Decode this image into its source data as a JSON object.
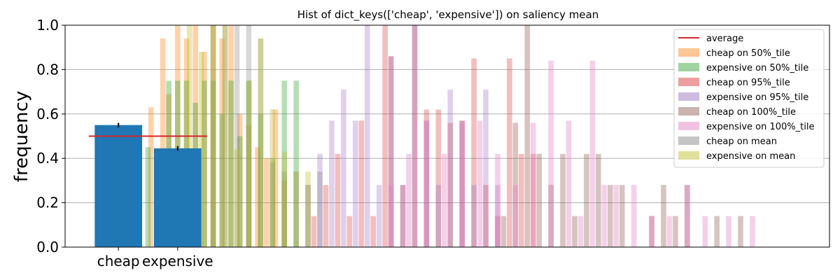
{
  "chart_data": {
    "type": "bar",
    "title": "Hist of dict_keys(['cheap', 'expensive']) on saliency mean",
    "xlabel": "",
    "ylabel": "frequency",
    "ylim": [
      0,
      1.0
    ],
    "y_ticks": [
      "0.0",
      "0.2",
      "0.4",
      "0.6",
      "0.8",
      "1.0"
    ],
    "grid": "horizontal",
    "legend_position": "top-right",
    "categories": [
      "cheap",
      "expensive"
    ],
    "main_bars": {
      "color": "#1f77b4",
      "values": [
        0.55,
        0.445
      ],
      "error": [
        0.01,
        0.01
      ]
    },
    "average": {
      "name": "average",
      "value": 0.5,
      "color": "#d62728"
    },
    "histograms": [
      {
        "name": "cheap on 50%_tile",
        "color": "#ff7f0e",
        "opacity": 0.35,
        "x": [
          0.35,
          0.55,
          0.75,
          0.85,
          1.0,
          1.15,
          1.3,
          1.45,
          1.6,
          1.75,
          1.9,
          2.05,
          2.2,
          2.35,
          2.5,
          2.65,
          2.8
        ],
        "values": [
          0.35,
          0.63,
          0.94,
          0.69,
          1.0,
          0.94,
          1.0,
          0.88,
          1.0,
          0.94,
          1.0,
          0.6,
          0.55,
          0.45,
          0.4,
          0.62,
          0.3
        ]
      },
      {
        "name": "expensive on 50%_tile",
        "color": "#2ca02c",
        "opacity": 0.35,
        "x": [
          0.5,
          0.7,
          0.85,
          1.0,
          1.15,
          1.3,
          1.45,
          1.6,
          1.75,
          1.9,
          2.05,
          2.2,
          2.4,
          2.6,
          2.8,
          3.0
        ],
        "values": [
          0.45,
          0.3,
          0.75,
          0.75,
          0.75,
          0.65,
          0.75,
          0.75,
          0.6,
          0.75,
          0.5,
          0.75,
          0.6,
          0.4,
          0.75,
          0.75
        ]
      },
      {
        "name": "cheap on 95%_tile",
        "color": "#d62728",
        "opacity": 0.3,
        "x": [
          3.3,
          3.5,
          3.7,
          3.9,
          4.1,
          4.3,
          4.5,
          4.6,
          4.8,
          5.0,
          5.2,
          5.4,
          5.6,
          5.8,
          6.0,
          6.2,
          6.4,
          6.6,
          6.8,
          7.0
        ],
        "values": [
          0.14,
          0.28,
          0.42,
          0.14,
          0.57,
          0.14,
          1.0,
          0.86,
          0.28,
          1.0,
          0.62,
          0.62,
          0.56,
          0.57,
          0.85,
          0.28,
          0.14,
          0.85,
          0.42,
          0.42
        ]
      },
      {
        "name": "expensive on 95%_tile",
        "color": "#9467bd",
        "opacity": 0.3,
        "x": [
          3.2,
          3.4,
          3.6,
          3.8,
          4.0,
          4.2,
          4.4,
          4.6,
          4.8,
          5.0,
          5.2,
          5.4,
          5.6,
          5.8,
          6.0,
          6.2,
          6.4
        ],
        "values": [
          0.28,
          0.42,
          0.57,
          0.71,
          0.57,
          1.0,
          0.28,
          0.86,
          0.28,
          1.0,
          0.57,
          0.28,
          0.71,
          0.57,
          0.28,
          0.71,
          0.28
        ]
      },
      {
        "name": "cheap on 100%_tile",
        "color": "#8c564b",
        "opacity": 0.35,
        "x": [
          6.5,
          6.7,
          6.9,
          7.1,
          7.3,
          7.5,
          7.7,
          7.9,
          8.1,
          8.3,
          8.5,
          9.0,
          9.2,
          9.4,
          9.6,
          10.1,
          10.5
        ],
        "values": [
          0.14,
          0.56,
          1.0,
          0.42,
          0.28,
          0.42,
          0.14,
          0.42,
          0.42,
          0.28,
          0.28,
          0.14,
          0.28,
          0.14,
          0.28,
          0.14,
          0.14
        ]
      },
      {
        "name": "expensive on 100%_tile",
        "color": "#e377c2",
        "opacity": 0.35,
        "x": [
          4.6,
          4.9,
          5.2,
          5.5,
          5.8,
          6.1,
          6.4,
          6.7,
          7.0,
          7.3,
          7.6,
          7.8,
          8.0,
          8.2,
          8.4,
          8.7,
          9.0,
          9.3,
          9.6,
          9.9,
          10.3,
          10.7
        ],
        "values": [
          0.28,
          0.42,
          0.57,
          0.42,
          0.56,
          0.57,
          0.42,
          0.28,
          0.56,
          0.84,
          0.57,
          0.14,
          0.84,
          0.28,
          0.28,
          0.28,
          0.14,
          0.14,
          0.28,
          0.14,
          0.14,
          0.14
        ]
      },
      {
        "name": "cheap on mean",
        "color": "#7f7f7f",
        "opacity": 0.3,
        "x": [
          1.6,
          1.8,
          2.0,
          2.2,
          2.4,
          2.6,
          2.8,
          3.0,
          3.2,
          3.4
        ],
        "values": [
          1.0,
          1.0,
          1.0,
          1.0,
          0.94,
          0.38,
          0.34,
          0.34,
          0.28,
          0.34
        ]
      },
      {
        "name": "expensive on mean",
        "color": "#bcbd22",
        "opacity": 0.35,
        "x": [
          1.2,
          1.4,
          1.6,
          1.8,
          2.0,
          2.2,
          2.4,
          2.6,
          2.8,
          3.0,
          3.2
        ],
        "values": [
          1.0,
          0.88,
          1.0,
          1.0,
          0.44,
          0.75,
          0.94,
          0.62,
          0.43,
          0.34,
          0.34
        ]
      }
    ]
  }
}
